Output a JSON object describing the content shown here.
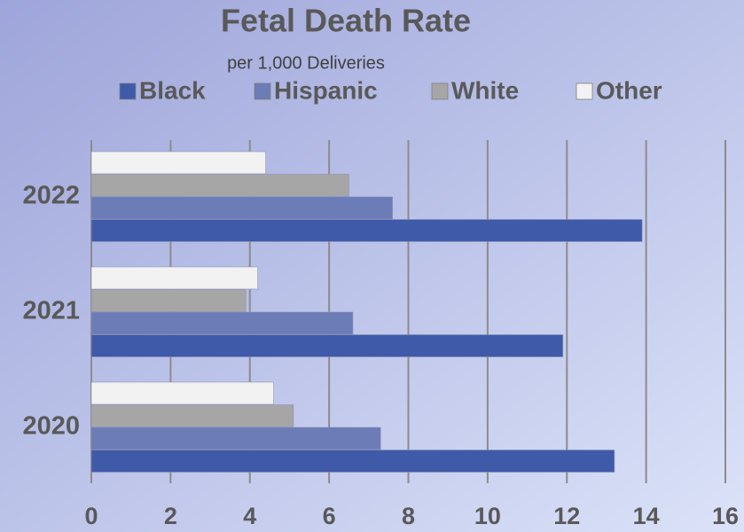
{
  "chart_data": {
    "type": "hbar",
    "title": "Fetal Death Rate",
    "subtitle": "per 1,000 Deliveries",
    "categories": [
      "2020",
      "2021",
      "2022"
    ],
    "series": [
      {
        "name": "Black",
        "color": "#3f5aa8",
        "values": [
          13.2,
          11.9,
          13.9
        ]
      },
      {
        "name": "Hispanic",
        "color": "#6b7cb6",
        "values": [
          7.3,
          6.6,
          7.6
        ]
      },
      {
        "name": "White",
        "color": "#a6a6a6",
        "values": [
          5.1,
          3.9,
          6.5
        ]
      },
      {
        "name": "Other",
        "color": "#f2f2f2",
        "values": [
          4.6,
          4.2,
          4.4
        ]
      }
    ],
    "xlim": [
      0,
      16
    ],
    "xticks": [
      0,
      2,
      4,
      6,
      8,
      10,
      12,
      14,
      16
    ],
    "grid": true,
    "legend": "top"
  }
}
